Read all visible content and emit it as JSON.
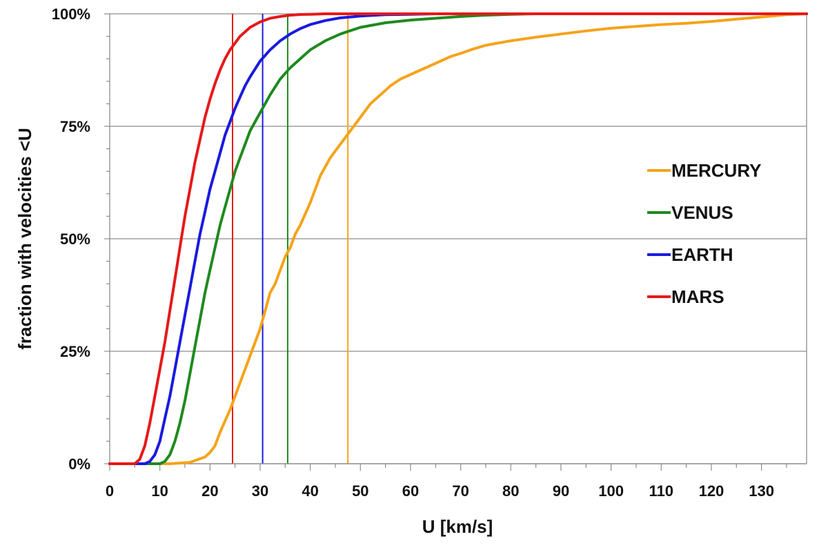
{
  "chart_data": {
    "type": "line",
    "title": "",
    "xlabel": "U [km/s]",
    "ylabel": "fraction with velocities <U",
    "xlim": [
      0,
      139
    ],
    "ylim": [
      0,
      100
    ],
    "x_ticks": [
      0,
      10,
      20,
      30,
      40,
      50,
      60,
      70,
      80,
      90,
      100,
      110,
      120,
      130
    ],
    "x_tick_labels": [
      "0",
      "10",
      "20",
      "30",
      "40",
      "50",
      "60",
      "70",
      "80",
      "90",
      "100",
      "110",
      "120",
      "130"
    ],
    "y_ticks": [
      0,
      25,
      50,
      75,
      100
    ],
    "y_tick_labels": [
      "0%",
      "25%",
      "50%",
      "75%",
      "100%"
    ],
    "grid": "horizontal",
    "legend_position": "right",
    "series": [
      {
        "name": "MERCURY",
        "color": "#f5a31a",
        "vline": 47.5,
        "x": [
          0,
          12,
          16,
          19,
          20,
          21,
          22,
          23,
          24,
          25,
          26,
          27,
          28,
          29,
          30,
          31,
          32,
          33,
          34,
          35,
          36,
          37,
          38,
          40,
          42,
          44,
          46,
          48,
          50,
          52,
          54,
          56,
          58,
          60,
          62,
          64,
          66,
          68,
          70,
          72,
          75,
          78,
          80,
          85,
          90,
          95,
          100,
          105,
          110,
          115,
          120,
          125,
          130,
          135,
          139
        ],
        "y": [
          0,
          0,
          0.3,
          1.5,
          2.5,
          4,
          7,
          9.5,
          12,
          15,
          18,
          21,
          24,
          27,
          30,
          34,
          38,
          40,
          43,
          46,
          48,
          51,
          53,
          58,
          64,
          68,
          71,
          74,
          77,
          80,
          82,
          84,
          85.5,
          86.5,
          87.5,
          88.5,
          89.5,
          90.5,
          91.2,
          92,
          93,
          93.6,
          94,
          94.8,
          95.5,
          96.2,
          96.8,
          97.2,
          97.6,
          97.9,
          98.3,
          98.8,
          99.3,
          99.8,
          100
        ]
      },
      {
        "name": "VENUS",
        "color": "#1e8a1e",
        "vline": 35.5,
        "x": [
          0,
          10,
          11,
          12,
          13,
          14,
          15,
          16,
          17,
          18,
          19,
          20,
          21,
          22,
          23,
          24,
          25,
          26,
          27,
          28,
          29,
          30,
          32,
          34,
          36,
          38,
          40,
          43,
          46,
          50,
          55,
          60,
          65,
          70,
          75,
          80,
          85,
          139
        ],
        "y": [
          0,
          0,
          0.5,
          2,
          5,
          9,
          14,
          20,
          26,
          32,
          38,
          43,
          48,
          53,
          57,
          61,
          65,
          68,
          71,
          74,
          76,
          78,
          82,
          85.5,
          88,
          90,
          92,
          94,
          95.5,
          97,
          98,
          98.6,
          99,
          99.4,
          99.7,
          99.9,
          100,
          100
        ]
      },
      {
        "name": "EARTH",
        "color": "#1a1adf",
        "vline": 30.5,
        "x": [
          0,
          7,
          8,
          9,
          10,
          11,
          12,
          13,
          14,
          15,
          16,
          17,
          18,
          19,
          20,
          21,
          22,
          23,
          24,
          25,
          26,
          27,
          28,
          30,
          32,
          34,
          36,
          38,
          40,
          43,
          46,
          50,
          55,
          60,
          65,
          70,
          139
        ],
        "y": [
          0,
          0,
          0.5,
          2,
          5,
          10,
          15,
          21,
          27,
          33,
          39,
          45,
          51,
          56,
          61,
          65,
          69,
          73,
          76,
          79,
          81.5,
          84,
          86,
          89.5,
          92,
          94,
          95.5,
          96.7,
          97.6,
          98.5,
          99.1,
          99.5,
          99.8,
          99.9,
          100,
          100,
          100
        ]
      },
      {
        "name": "MARS",
        "color": "#e61919",
        "vline": 24.5,
        "x": [
          0,
          5,
          6,
          7,
          8,
          9,
          10,
          11,
          12,
          13,
          14,
          15,
          16,
          17,
          18,
          19,
          20,
          21,
          22,
          23,
          24,
          25,
          26,
          28,
          30,
          32,
          34,
          36,
          38,
          40,
          43,
          46,
          50,
          55,
          139
        ],
        "y": [
          0,
          0,
          1,
          4,
          9,
          15,
          21,
          27,
          34,
          41,
          48,
          55,
          61,
          67,
          72,
          77,
          81,
          84.5,
          87.5,
          90,
          92,
          93.5,
          95,
          97,
          98.2,
          99,
          99.4,
          99.7,
          99.85,
          99.9,
          100,
          100,
          100,
          100,
          100
        ]
      }
    ]
  }
}
